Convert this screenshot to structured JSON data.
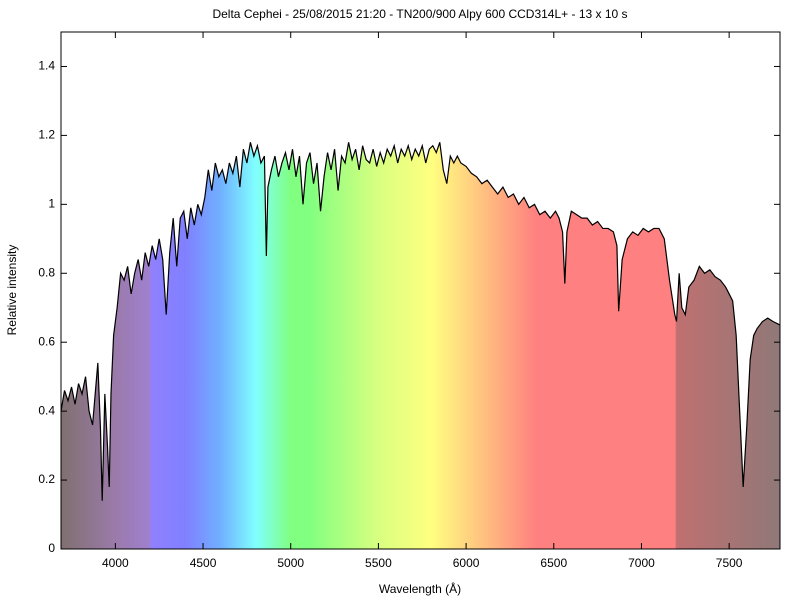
{
  "chart_data": {
    "type": "line",
    "title": "Delta Cephei - 25/08/2015 21:20 - TN200/900 Alpy 600 CCD314L+ - 13 x 10 s",
    "x_label": "Wavelength (Å)",
    "y_label": "Relative intensity",
    "color": "#000000",
    "x": [
      3690,
      3710,
      3730,
      3750,
      3770,
      3790,
      3810,
      3830,
      3850,
      3870,
      3890,
      3900,
      3915,
      3925,
      3940,
      3955,
      3965,
      3975,
      3990,
      4010,
      4030,
      4050,
      4070,
      4090,
      4110,
      4130,
      4150,
      4170,
      4190,
      4210,
      4230,
      4250,
      4270,
      4290,
      4310,
      4330,
      4350,
      4370,
      4390,
      4410,
      4430,
      4450,
      4470,
      4490,
      4510,
      4530,
      4550,
      4570,
      4590,
      4610,
      4630,
      4650,
      4670,
      4690,
      4710,
      4730,
      4750,
      4770,
      4790,
      4810,
      4830,
      4850,
      4861,
      4870,
      4890,
      4910,
      4930,
      4950,
      4970,
      4990,
      5010,
      5030,
      5050,
      5070,
      5090,
      5110,
      5130,
      5150,
      5170,
      5190,
      5210,
      5230,
      5250,
      5270,
      5290,
      5310,
      5330,
      5350,
      5370,
      5390,
      5410,
      5430,
      5450,
      5470,
      5490,
      5510,
      5530,
      5550,
      5570,
      5590,
      5610,
      5630,
      5650,
      5670,
      5690,
      5710,
      5730,
      5750,
      5770,
      5790,
      5810,
      5830,
      5850,
      5870,
      5890,
      5910,
      5930,
      5950,
      5970,
      6000,
      6030,
      6060,
      6090,
      6120,
      6150,
      6180,
      6210,
      6240,
      6270,
      6300,
      6330,
      6360,
      6390,
      6420,
      6450,
      6480,
      6510,
      6530,
      6550,
      6563,
      6575,
      6600,
      6630,
      6660,
      6690,
      6720,
      6750,
      6780,
      6810,
      6840,
      6860,
      6870,
      6890,
      6920,
      6950,
      6980,
      7010,
      7040,
      7070,
      7100,
      7130,
      7160,
      7190,
      7200,
      7215,
      7230,
      7250,
      7270,
      7300,
      7330,
      7360,
      7390,
      7420,
      7450,
      7480,
      7500,
      7520,
      7540,
      7560,
      7580,
      7600,
      7620,
      7640,
      7660,
      7690,
      7720,
      7750,
      7790
    ],
    "values": [
      0.4,
      0.46,
      0.43,
      0.47,
      0.42,
      0.48,
      0.45,
      0.5,
      0.4,
      0.36,
      0.48,
      0.54,
      0.35,
      0.14,
      0.45,
      0.3,
      0.18,
      0.45,
      0.62,
      0.7,
      0.8,
      0.78,
      0.82,
      0.74,
      0.8,
      0.84,
      0.78,
      0.86,
      0.82,
      0.88,
      0.84,
      0.9,
      0.84,
      0.68,
      0.86,
      0.96,
      0.82,
      0.96,
      0.98,
      0.9,
      0.99,
      0.94,
      1.0,
      0.97,
      1.02,
      1.1,
      1.04,
      1.12,
      1.08,
      1.1,
      1.06,
      1.12,
      1.09,
      1.14,
      1.05,
      1.16,
      1.12,
      1.18,
      1.14,
      1.17,
      1.12,
      1.14,
      0.85,
      1.05,
      1.1,
      1.14,
      1.08,
      1.12,
      1.15,
      1.1,
      1.16,
      1.08,
      1.14,
      1.0,
      1.12,
      1.15,
      1.06,
      1.12,
      0.98,
      1.08,
      1.15,
      1.1,
      1.16,
      1.04,
      1.14,
      1.12,
      1.18,
      1.13,
      1.16,
      1.1,
      1.17,
      1.13,
      1.12,
      1.16,
      1.11,
      1.15,
      1.12,
      1.16,
      1.14,
      1.17,
      1.12,
      1.16,
      1.14,
      1.17,
      1.13,
      1.16,
      1.14,
      1.17,
      1.12,
      1.16,
      1.17,
      1.15,
      1.18,
      1.1,
      1.06,
      1.14,
      1.12,
      1.14,
      1.12,
      1.11,
      1.09,
      1.08,
      1.06,
      1.07,
      1.05,
      1.03,
      1.05,
      1.02,
      1.03,
      1.0,
      1.02,
      0.99,
      1.0,
      0.97,
      0.98,
      0.96,
      0.98,
      0.96,
      0.92,
      0.77,
      0.92,
      0.98,
      0.97,
      0.96,
      0.96,
      0.94,
      0.95,
      0.93,
      0.93,
      0.92,
      0.88,
      0.69,
      0.84,
      0.9,
      0.92,
      0.91,
      0.93,
      0.92,
      0.93,
      0.93,
      0.9,
      0.78,
      0.68,
      0.66,
      0.8,
      0.7,
      0.68,
      0.76,
      0.78,
      0.82,
      0.8,
      0.81,
      0.79,
      0.78,
      0.76,
      0.74,
      0.72,
      0.62,
      0.4,
      0.18,
      0.35,
      0.55,
      0.62,
      0.64,
      0.66,
      0.67,
      0.66,
      0.65
    ],
    "xlim": [
      3690,
      7790
    ],
    "ylim": [
      0,
      1.5
    ],
    "xticks": [
      4000,
      4500,
      5000,
      5500,
      6000,
      6500,
      7000,
      7500
    ],
    "yticks": [
      0,
      0.2,
      0.4,
      0.6,
      0.8,
      1,
      1.2,
      1.4
    ]
  }
}
